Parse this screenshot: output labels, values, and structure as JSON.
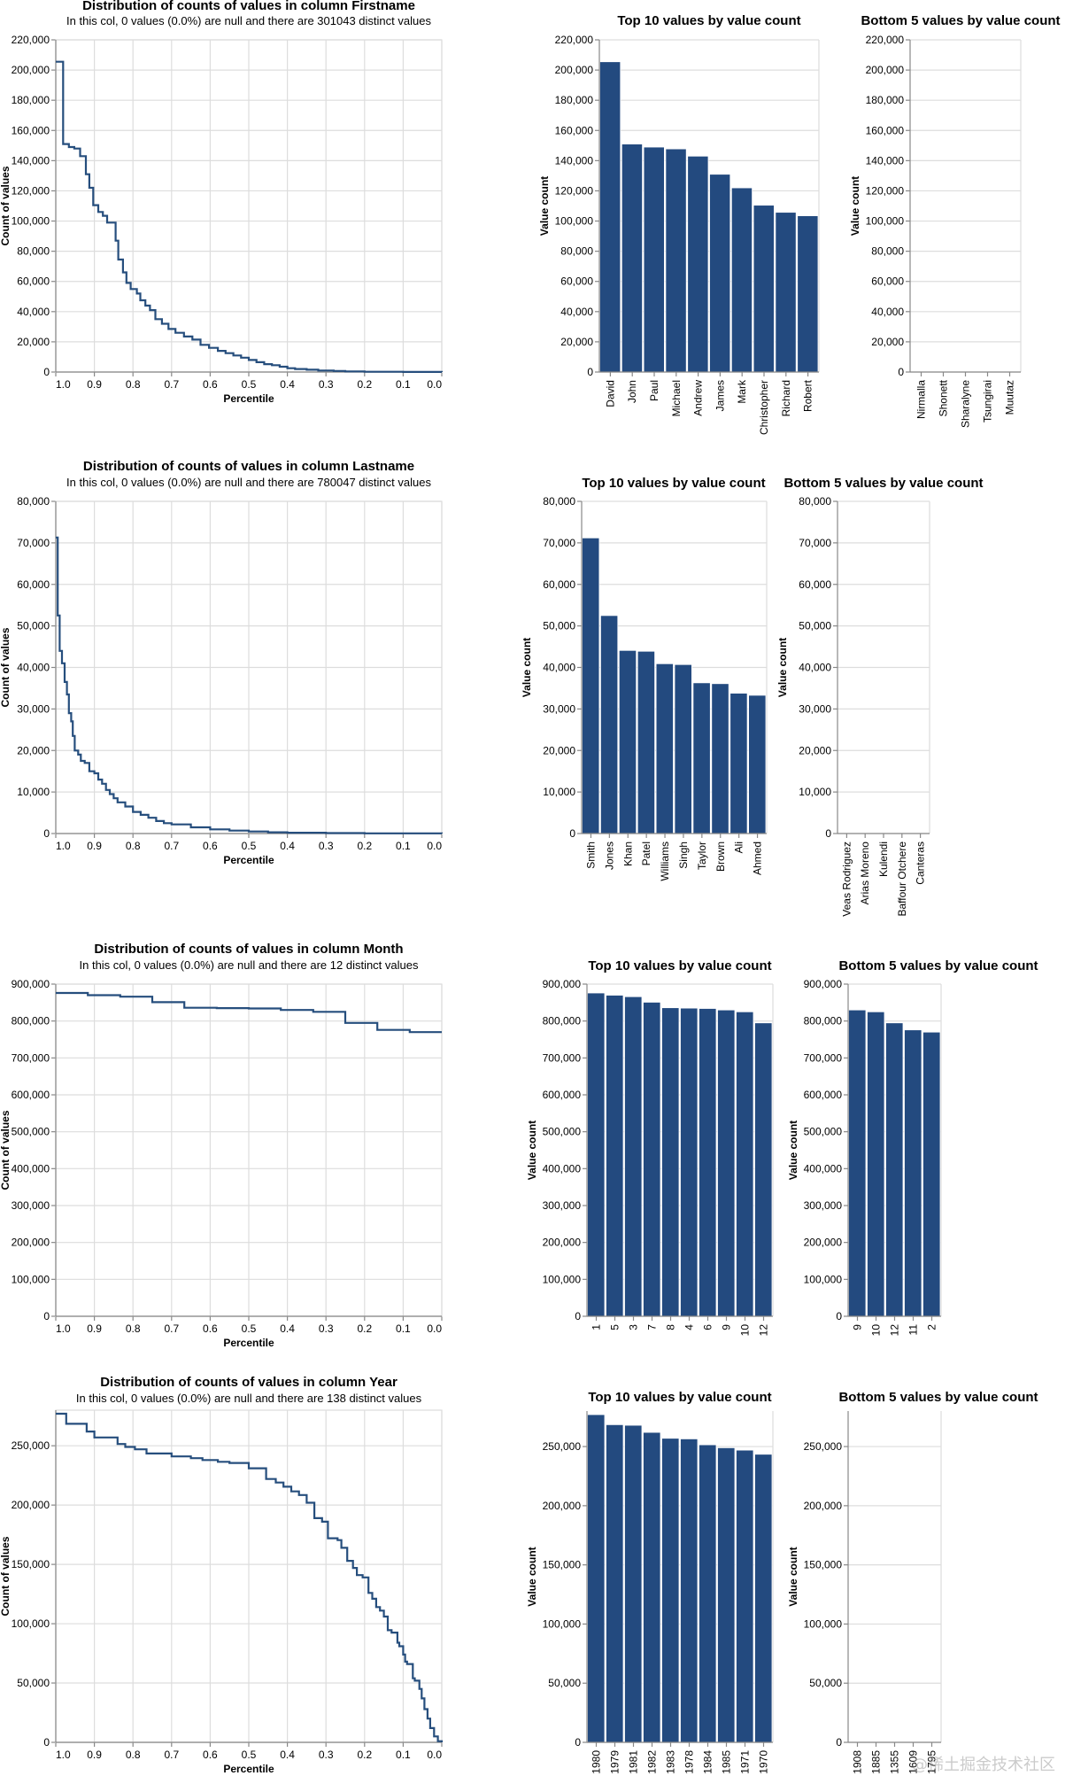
{
  "page": {
    "domain": "Chart"
  },
  "chart_data": [
    {
      "id": "firstname-dist",
      "type": "line",
      "step": true,
      "title": "Distribution of counts of values in column Firstname",
      "subtitle": "In this col, 0 values (0.0%) are null and there are 301043 distinct values",
      "xlabel": "Percentile",
      "ylabel": "Count of values",
      "xlim": [
        1.0,
        0.0
      ],
      "ylim": [
        0,
        220000
      ],
      "xticks": [
        "1.0",
        "0.9",
        "0.8",
        "0.7",
        "0.6",
        "0.5",
        "0.4",
        "0.3",
        "0.2",
        "0.1",
        "0.0"
      ],
      "yticks": [
        0,
        20000,
        40000,
        60000,
        80000,
        100000,
        120000,
        140000,
        160000,
        180000,
        200000,
        220000
      ],
      "ytick_labels": [
        "0",
        "20,000",
        "40,000",
        "60,000",
        "80,000",
        "100,000",
        "120,000",
        "140,000",
        "160,000",
        "180,000",
        "200,000",
        "220,000"
      ],
      "grid": true,
      "points": [
        [
          1.0,
          205500
        ],
        [
          0.981,
          151000
        ],
        [
          0.966,
          149000
        ],
        [
          0.952,
          148000
        ],
        [
          0.937,
          143000
        ],
        [
          0.922,
          131000
        ],
        [
          0.913,
          122000
        ],
        [
          0.903,
          110500
        ],
        [
          0.89,
          106000
        ],
        [
          0.878,
          103500
        ],
        [
          0.867,
          99000
        ],
        [
          0.845,
          87000
        ],
        [
          0.838,
          74500
        ],
        [
          0.826,
          66000
        ],
        [
          0.817,
          59000
        ],
        [
          0.806,
          55000
        ],
        [
          0.79,
          52000
        ],
        [
          0.781,
          47500
        ],
        [
          0.768,
          44000
        ],
        [
          0.756,
          41000
        ],
        [
          0.742,
          35000
        ],
        [
          0.725,
          32000
        ],
        [
          0.708,
          28500
        ],
        [
          0.69,
          26000
        ],
        [
          0.668,
          23500
        ],
        [
          0.646,
          21500
        ],
        [
          0.625,
          18000
        ],
        [
          0.603,
          16000
        ],
        [
          0.58,
          14000
        ],
        [
          0.56,
          12500
        ],
        [
          0.54,
          11000
        ],
        [
          0.52,
          9500
        ],
        [
          0.5,
          8000
        ],
        [
          0.48,
          6500
        ],
        [
          0.46,
          5200
        ],
        [
          0.44,
          4500
        ],
        [
          0.42,
          3500
        ],
        [
          0.4,
          2500
        ],
        [
          0.38,
          2000
        ],
        [
          0.35,
          1500
        ],
        [
          0.32,
          1000
        ],
        [
          0.28,
          700
        ],
        [
          0.25,
          400
        ],
        [
          0.2,
          200
        ],
        [
          0.1,
          50
        ],
        [
          0.0,
          1
        ]
      ]
    },
    {
      "id": "firstname-top10",
      "type": "bar",
      "title": "Top 10 values by value count",
      "xlabel": "",
      "ylabel": "Value count",
      "ylim": [
        0,
        220000
      ],
      "yticks": [
        0,
        20000,
        40000,
        60000,
        80000,
        100000,
        120000,
        140000,
        160000,
        180000,
        200000,
        220000
      ],
      "ytick_labels": [
        "0",
        "20,000",
        "40,000",
        "60,000",
        "80,000",
        "100,000",
        "120,000",
        "140,000",
        "160,000",
        "180,000",
        "200,000",
        "220,000"
      ],
      "categories": [
        "David",
        "John",
        "Paul",
        "Michael",
        "Andrew",
        "James",
        "Mark",
        "Christopher",
        "Richard",
        "Robert"
      ],
      "values": [
        205500,
        151000,
        149000,
        147800,
        143000,
        131000,
        122000,
        110500,
        105800,
        103500
      ]
    },
    {
      "id": "firstname-bottom5",
      "type": "bar",
      "title": "Bottom 5 values by value count",
      "xlabel": "",
      "ylabel": "Value count",
      "ylim": [
        0,
        220000
      ],
      "yticks": [
        0,
        20000,
        40000,
        60000,
        80000,
        100000,
        120000,
        140000,
        160000,
        180000,
        200000,
        220000
      ],
      "ytick_labels": [
        "0",
        "20,000",
        "40,000",
        "60,000",
        "80,000",
        "100,000",
        "120,000",
        "140,000",
        "160,000",
        "180,000",
        "200,000",
        "220,000"
      ],
      "categories": [
        "Nirmalla",
        "Shonett",
        "Sharalyne",
        "Tsungirai",
        "Muutaz"
      ],
      "values": [
        1,
        1,
        1,
        1,
        1
      ]
    },
    {
      "id": "lastname-dist",
      "type": "line",
      "step": true,
      "title": "Distribution of counts of values in column Lastname",
      "subtitle": "In this col, 0 values (0.0%) are null and there are 780047 distinct values",
      "xlabel": "Percentile",
      "ylabel": "Count of values",
      "xlim": [
        1.0,
        0.0
      ],
      "ylim": [
        0,
        80000
      ],
      "xticks": [
        "1.0",
        "0.9",
        "0.8",
        "0.7",
        "0.6",
        "0.5",
        "0.4",
        "0.3",
        "0.2",
        "0.1",
        "0.0"
      ],
      "yticks": [
        0,
        10000,
        20000,
        30000,
        40000,
        50000,
        60000,
        70000,
        80000
      ],
      "ytick_labels": [
        "0",
        "10,000",
        "20,000",
        "30,000",
        "40,000",
        "50,000",
        "60,000",
        "70,000",
        "80,000"
      ],
      "grid": true,
      "points": [
        [
          1.0,
          71300
        ],
        [
          0.995,
          52500
        ],
        [
          0.99,
          44000
        ],
        [
          0.984,
          41000
        ],
        [
          0.977,
          36500
        ],
        [
          0.971,
          33500
        ],
        [
          0.966,
          29000
        ],
        [
          0.96,
          27000
        ],
        [
          0.956,
          23500
        ],
        [
          0.951,
          20000
        ],
        [
          0.942,
          19000
        ],
        [
          0.935,
          17500
        ],
        [
          0.925,
          17000
        ],
        [
          0.913,
          15000
        ],
        [
          0.9,
          14500
        ],
        [
          0.89,
          13000
        ],
        [
          0.88,
          12000
        ],
        [
          0.87,
          10500
        ],
        [
          0.86,
          9500
        ],
        [
          0.85,
          8500
        ],
        [
          0.84,
          7500
        ],
        [
          0.82,
          6500
        ],
        [
          0.8,
          5200
        ],
        [
          0.78,
          4500
        ],
        [
          0.76,
          3800
        ],
        [
          0.74,
          3000
        ],
        [
          0.72,
          2500
        ],
        [
          0.7,
          2200
        ],
        [
          0.65,
          1500
        ],
        [
          0.6,
          1000
        ],
        [
          0.55,
          700
        ],
        [
          0.5,
          500
        ],
        [
          0.45,
          300
        ],
        [
          0.4,
          200
        ],
        [
          0.3,
          100
        ],
        [
          0.2,
          50
        ],
        [
          0.0,
          1
        ]
      ]
    },
    {
      "id": "lastname-top10",
      "type": "bar",
      "title": "Top 10 values by value count",
      "xlabel": "",
      "ylabel": "Value count",
      "ylim": [
        0,
        80000
      ],
      "yticks": [
        0,
        10000,
        20000,
        30000,
        40000,
        50000,
        60000,
        70000,
        80000
      ],
      "ytick_labels": [
        "0",
        "10,000",
        "20,000",
        "30,000",
        "40,000",
        "50,000",
        "60,000",
        "70,000",
        "80,000"
      ],
      "categories": [
        "Smith",
        "Jones",
        "Khan",
        "Patel",
        "Williams",
        "Singh",
        "Taylor",
        "Brown",
        "Ali",
        "Ahmed"
      ],
      "values": [
        71200,
        52500,
        44100,
        43900,
        40900,
        40700,
        36300,
        36100,
        33800,
        33300
      ]
    },
    {
      "id": "lastname-bottom5",
      "type": "bar",
      "title": "Bottom 5 values by value count",
      "xlabel": "",
      "ylabel": "Value count",
      "ylim": [
        0,
        80000
      ],
      "yticks": [
        0,
        10000,
        20000,
        30000,
        40000,
        50000,
        60000,
        70000,
        80000
      ],
      "ytick_labels": [
        "0",
        "10,000",
        "20,000",
        "30,000",
        "40,000",
        "50,000",
        "60,000",
        "70,000",
        "80,000"
      ],
      "categories": [
        "Veas Rodriguez",
        "Arias Moreno",
        "Kulendi",
        "Baffour Otchere",
        "Canteras"
      ],
      "values": [
        1,
        1,
        1,
        1,
        1
      ]
    },
    {
      "id": "month-dist",
      "type": "line",
      "step": true,
      "title": "Distribution of counts of values in column Month",
      "subtitle": "In this col, 0 values (0.0%) are null and there are 12 distinct values",
      "xlabel": "Percentile",
      "ylabel": "Count of values",
      "xlim": [
        1.0,
        0.0
      ],
      "ylim": [
        0,
        900000
      ],
      "xticks": [
        "1.0",
        "0.9",
        "0.8",
        "0.7",
        "0.6",
        "0.5",
        "0.4",
        "0.3",
        "0.2",
        "0.1",
        "0.0"
      ],
      "yticks": [
        0,
        100000,
        200000,
        300000,
        400000,
        500000,
        600000,
        700000,
        800000,
        900000
      ],
      "ytick_labels": [
        "0",
        "100,000",
        "200,000",
        "300,000",
        "400,000",
        "500,000",
        "600,000",
        "700,000",
        "800,000",
        "900,000"
      ],
      "grid": true,
      "points": [
        [
          1.0,
          876000
        ],
        [
          0.917,
          870000
        ],
        [
          0.833,
          866000
        ],
        [
          0.75,
          851000
        ],
        [
          0.667,
          836000
        ],
        [
          0.583,
          835000
        ],
        [
          0.5,
          834000
        ],
        [
          0.417,
          830000
        ],
        [
          0.333,
          825000
        ],
        [
          0.25,
          795000
        ],
        [
          0.167,
          776000
        ],
        [
          0.083,
          770000
        ],
        [
          0.0,
          770000
        ]
      ]
    },
    {
      "id": "month-top10",
      "type": "bar",
      "title": "Top 10 values by value count",
      "xlabel": "",
      "ylabel": "Value count",
      "ylim": [
        0,
        900000
      ],
      "yticks": [
        0,
        100000,
        200000,
        300000,
        400000,
        500000,
        600000,
        700000,
        800000,
        900000
      ],
      "ytick_labels": [
        "0",
        "100,000",
        "200,000",
        "300,000",
        "400,000",
        "500,000",
        "600,000",
        "700,000",
        "800,000",
        "900,000"
      ],
      "categories": [
        "1",
        "5",
        "3",
        "7",
        "8",
        "4",
        "6",
        "9",
        "10",
        "12"
      ],
      "values": [
        876000,
        870000,
        866000,
        851000,
        836000,
        835000,
        834000,
        830000,
        825000,
        795000
      ]
    },
    {
      "id": "month-bottom5",
      "type": "bar",
      "title": "Bottom 5 values by value count",
      "xlabel": "",
      "ylabel": "Value count",
      "ylim": [
        0,
        900000
      ],
      "yticks": [
        0,
        100000,
        200000,
        300000,
        400000,
        500000,
        600000,
        700000,
        800000,
        900000
      ],
      "ytick_labels": [
        "0",
        "100,000",
        "200,000",
        "300,000",
        "400,000",
        "500,000",
        "600,000",
        "700,000",
        "800,000",
        "900,000"
      ],
      "categories": [
        "9",
        "10",
        "12",
        "11",
        "2"
      ],
      "values": [
        830000,
        825000,
        795000,
        776000,
        770000
      ]
    },
    {
      "id": "year-dist",
      "type": "line",
      "step": true,
      "title": "Distribution of counts of values in column Year",
      "subtitle": "In this col, 0 values (0.0%) are null and there are 138 distinct values",
      "xlabel": "Percentile",
      "ylabel": "Count of values",
      "xlim": [
        1.0,
        0.0
      ],
      "ylim": [
        0,
        280000
      ],
      "xticks": [
        "1.0",
        "0.9",
        "0.8",
        "0.7",
        "0.6",
        "0.5",
        "0.4",
        "0.3",
        "0.2",
        "0.1",
        "0.0"
      ],
      "yticks": [
        0,
        50000,
        100000,
        150000,
        200000,
        250000
      ],
      "ytick_labels": [
        "0",
        "50,000",
        "100,000",
        "150,000",
        "200,000",
        "250,000"
      ],
      "grid": true,
      "points": [
        [
          1.0,
          277000
        ],
        [
          0.973,
          268500
        ],
        [
          0.92,
          262000
        ],
        [
          0.9,
          257000
        ],
        [
          0.84,
          251500
        ],
        [
          0.82,
          249000
        ],
        [
          0.795,
          247000
        ],
        [
          0.765,
          243500
        ],
        [
          0.7,
          241000
        ],
        [
          0.65,
          239500
        ],
        [
          0.62,
          238000
        ],
        [
          0.58,
          236500
        ],
        [
          0.55,
          235500
        ],
        [
          0.5,
          231000
        ],
        [
          0.455,
          222000
        ],
        [
          0.43,
          219000
        ],
        [
          0.41,
          215500
        ],
        [
          0.39,
          211500
        ],
        [
          0.37,
          208500
        ],
        [
          0.35,
          202000
        ],
        [
          0.33,
          189000
        ],
        [
          0.31,
          186000
        ],
        [
          0.295,
          172000
        ],
        [
          0.27,
          170500
        ],
        [
          0.26,
          164000
        ],
        [
          0.245,
          153000
        ],
        [
          0.23,
          147000
        ],
        [
          0.22,
          141000
        ],
        [
          0.205,
          139000
        ],
        [
          0.19,
          126000
        ],
        [
          0.18,
          121000
        ],
        [
          0.17,
          114000
        ],
        [
          0.16,
          111000
        ],
        [
          0.15,
          106000
        ],
        [
          0.14,
          94500
        ],
        [
          0.13,
          92500
        ],
        [
          0.115,
          84000
        ],
        [
          0.11,
          81000
        ],
        [
          0.1,
          74000
        ],
        [
          0.095,
          68000
        ],
        [
          0.09,
          66000
        ],
        [
          0.075,
          54000
        ],
        [
          0.07,
          52000
        ],
        [
          0.058,
          45000
        ],
        [
          0.052,
          37000
        ],
        [
          0.045,
          28000
        ],
        [
          0.037,
          20000
        ],
        [
          0.03,
          12000
        ],
        [
          0.02,
          5000
        ],
        [
          0.01,
          1000
        ],
        [
          0.0,
          0
        ]
      ]
    },
    {
      "id": "year-top10",
      "type": "bar",
      "title": "Top 10 values by value count",
      "xlabel": "",
      "ylabel": "Value count",
      "ylim": [
        0,
        280000
      ],
      "yticks": [
        0,
        50000,
        100000,
        150000,
        200000,
        250000
      ],
      "ytick_labels": [
        "0",
        "50,000",
        "100,000",
        "150,000",
        "200,000",
        "250,000"
      ],
      "categories": [
        "1980",
        "1979",
        "1981",
        "1982",
        "1983",
        "1978",
        "1984",
        "1985",
        "1971",
        "1970"
      ],
      "values": [
        277000,
        268500,
        268000,
        262000,
        257000,
        256500,
        251500,
        249000,
        247000,
        243500
      ]
    },
    {
      "id": "year-bottom5",
      "type": "bar",
      "title": "Bottom 5 values by value count",
      "xlabel": "",
      "ylabel": "Value count",
      "ylim": [
        0,
        280000
      ],
      "yticks": [
        0,
        50000,
        100000,
        150000,
        200000,
        250000
      ],
      "ytick_labels": [
        "0",
        "50,000",
        "100,000",
        "150,000",
        "200,000",
        "250,000"
      ],
      "categories": [
        "1908",
        "1885",
        "1355",
        "1609",
        "1795"
      ],
      "values": [
        1,
        1,
        1,
        1,
        1
      ]
    }
  ],
  "watermark": "@稀土掘金技术社区"
}
